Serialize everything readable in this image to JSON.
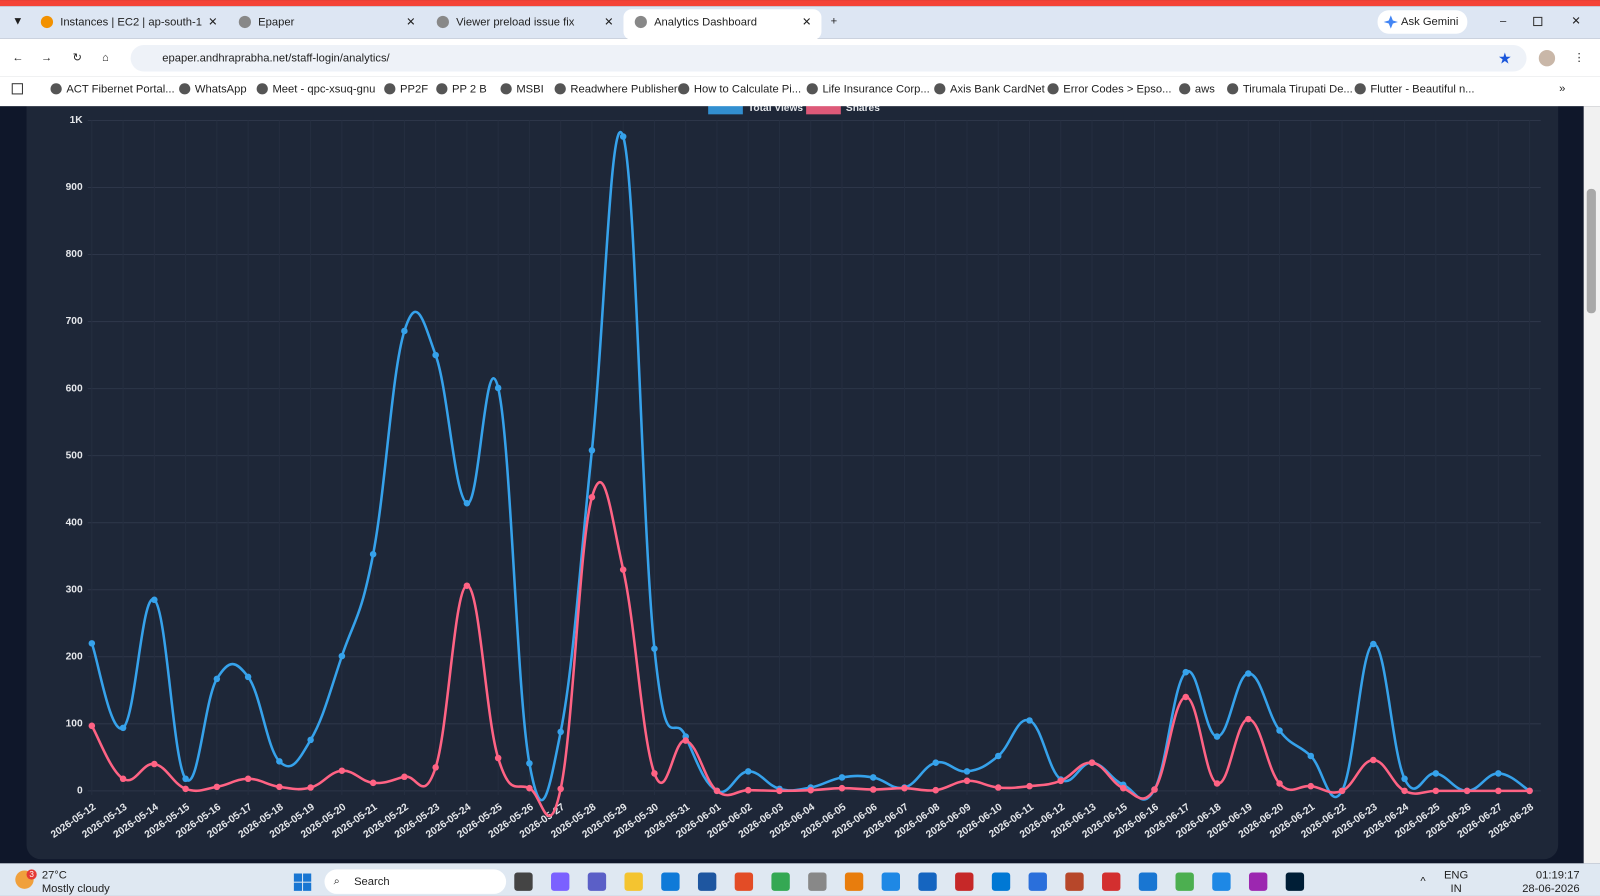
{
  "browser": {
    "tabs": [
      "Instances | EC2 | ap-south-1",
      "Epaper",
      "Viewer preload issue fix",
      "Analytics Dashboard"
    ],
    "ask_gemini": "Ask Gemini",
    "url": "epaper.andhraprabha.net/staff-login/analytics/",
    "bookmarks": [
      "ACT Fibernet Portal...",
      "WhatsApp",
      "Meet - qpc-xsuq-gnu",
      "PP2F",
      "PP 2 B",
      "MSBI",
      "Readwhere Publisher",
      "How to Calculate Pi...",
      "Life Insurance Corp...",
      "Axis Bank CardNet",
      "Error Codes > Epso...",
      "aws",
      "Tirumala Tirupati De...",
      "Flutter - Beautiful n..."
    ]
  },
  "chart_data": {
    "type": "line",
    "categories": [
      "2026-05-12",
      "2026-05-13",
      "2026-05-14",
      "2026-05-15",
      "2026-05-16",
      "2026-05-17",
      "2026-05-18",
      "2026-05-19",
      "2026-05-20",
      "2026-05-21",
      "2026-05-22",
      "2026-05-23",
      "2026-05-24",
      "2026-05-25",
      "2026-05-26",
      "2026-05-27",
      "2026-05-28",
      "2026-05-29",
      "2026-05-30",
      "2026-05-31",
      "2026-06-01",
      "2026-06-02",
      "2026-06-03",
      "2026-06-04",
      "2026-06-05",
      "2026-06-06",
      "2026-06-07",
      "2026-06-08",
      "2026-06-09",
      "2026-06-10",
      "2026-06-11",
      "2026-06-12",
      "2026-06-13",
      "2026-06-15",
      "2026-06-16",
      "2026-06-17",
      "2026-06-18",
      "2026-06-19",
      "2026-06-20",
      "2026-06-21",
      "2026-06-22",
      "2026-06-23",
      "2026-06-24",
      "2026-06-25",
      "2026-06-26",
      "2026-06-27",
      "2026-06-28"
    ],
    "series": [
      {
        "name": "Total Views",
        "color": "#36a2eb",
        "values": [
          220,
          94,
          285,
          18,
          167,
          170,
          44,
          76,
          201,
          353,
          686,
          650,
          429,
          601,
          41,
          88,
          508,
          976,
          212,
          81,
          0,
          29,
          3,
          5,
          20,
          20,
          5,
          42,
          29,
          52,
          105,
          17,
          42,
          9,
          2,
          177,
          81,
          175,
          90,
          52,
          0,
          219,
          18,
          26,
          0,
          26,
          0
        ]
      },
      {
        "name": "Shares",
        "color": "#ff6384",
        "values": [
          97,
          18,
          40,
          3,
          6,
          18,
          6,
          5,
          30,
          12,
          21,
          35,
          306,
          49,
          4,
          3,
          438,
          330,
          26,
          75,
          0,
          1,
          0,
          1,
          4,
          2,
          4,
          1,
          15,
          5,
          7,
          15,
          42,
          4,
          2,
          140,
          11,
          107,
          11,
          7,
          0,
          46,
          0,
          0,
          0,
          0,
          0
        ]
      }
    ],
    "ylim": [
      0,
      1000
    ],
    "yticks": [
      0,
      100,
      200,
      300,
      400,
      500,
      600,
      700,
      800,
      900,
      {
        "value": 1000,
        "label": "1K"
      }
    ],
    "grid": true,
    "legend": "top"
  },
  "taskbar": {
    "weather_badge": "3",
    "weather_temp": "27°C",
    "weather_desc": "Mostly cloudy",
    "search": "Search",
    "lang": "ENG",
    "region": "IN",
    "time": "01:19:17",
    "date": "28-06-2026"
  }
}
